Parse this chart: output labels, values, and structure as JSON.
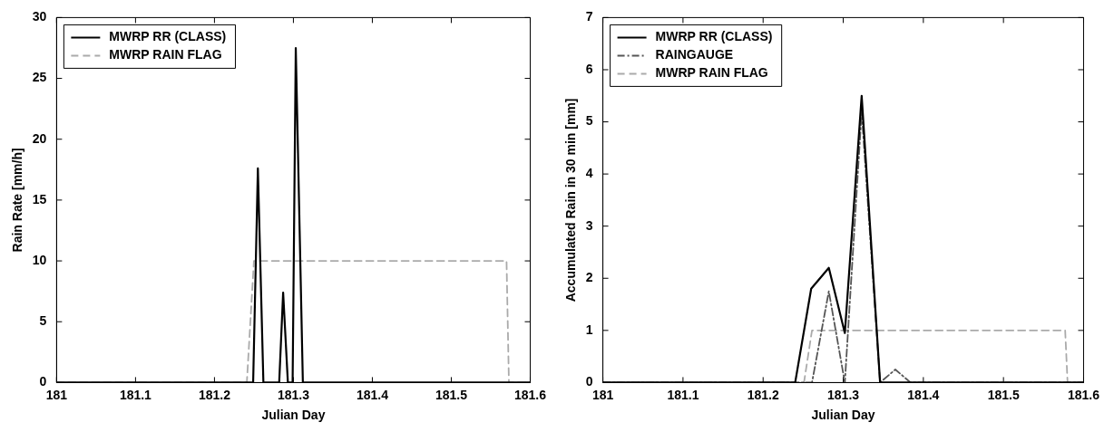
{
  "chart_data": [
    {
      "type": "line",
      "xlabel": "Julian Day",
      "ylabel": "Rain Rate [mm/h]",
      "xlim": [
        181,
        181.6
      ],
      "xticks": [
        181,
        181.1,
        181.2,
        181.3,
        181.4,
        181.5,
        181.6
      ],
      "ylim": [
        0,
        30
      ],
      "yticks": [
        0,
        5,
        10,
        15,
        20,
        25,
        30
      ],
      "grid": false,
      "legend": "top left",
      "marker": "none",
      "series": [
        {
          "name": "MWRP RR (CLASS)",
          "color": "#000000",
          "line_style": "solid",
          "x": [
            181,
            181.249,
            181.255,
            181.262,
            181.282,
            181.287,
            181.293,
            181.299,
            181.303,
            181.312,
            181.6
          ],
          "values": [
            0,
            0,
            17.6,
            0,
            0,
            7.4,
            0,
            0,
            27.5,
            0,
            0
          ]
        },
        {
          "name": "MWRP RAIN FLAG",
          "color": "#aaaaaa",
          "line_style": "dashed",
          "x": [
            181,
            181.241,
            181.25,
            181.57,
            181.573,
            181.6
          ],
          "values": [
            0,
            0,
            10,
            10,
            0,
            0
          ]
        }
      ]
    },
    {
      "type": "line",
      "xlabel": "Julian Day",
      "ylabel": "Accumulated Rain in 30 min [mm]",
      "xlim": [
        181,
        181.6
      ],
      "xticks": [
        181,
        181.1,
        181.2,
        181.3,
        181.4,
        181.5,
        181.6
      ],
      "ylim": [
        0,
        7
      ],
      "yticks": [
        0,
        1,
        2,
        3,
        4,
        5,
        6,
        7
      ],
      "grid": false,
      "legend": "top left",
      "marker": "none",
      "series": [
        {
          "name": "MWRP RR (CLASS)",
          "color": "#000000",
          "line_style": "solid",
          "x": [
            181,
            181.24,
            181.26,
            181.282,
            181.302,
            181.323,
            181.346,
            181.6
          ],
          "values": [
            0,
            0,
            1.8,
            2.2,
            0.95,
            5.5,
            0,
            0
          ]
        },
        {
          "name": "RAINGAUGE",
          "color": "#555555",
          "line_style": "dotted",
          "x": [
            181,
            181.261,
            181.282,
            181.302,
            181.323,
            181.346,
            181.365,
            181.384,
            181.6
          ],
          "values": [
            0,
            0,
            1.75,
            0,
            5.2,
            0,
            0.25,
            0,
            0
          ]
        },
        {
          "name": "MWRP RAIN FLAG",
          "color": "#aaaaaa",
          "line_style": "dashed",
          "x": [
            181,
            181.251,
            181.261,
            181.577,
            181.58,
            181.6
          ],
          "values": [
            0,
            0,
            1,
            1,
            0,
            0
          ]
        }
      ]
    }
  ]
}
